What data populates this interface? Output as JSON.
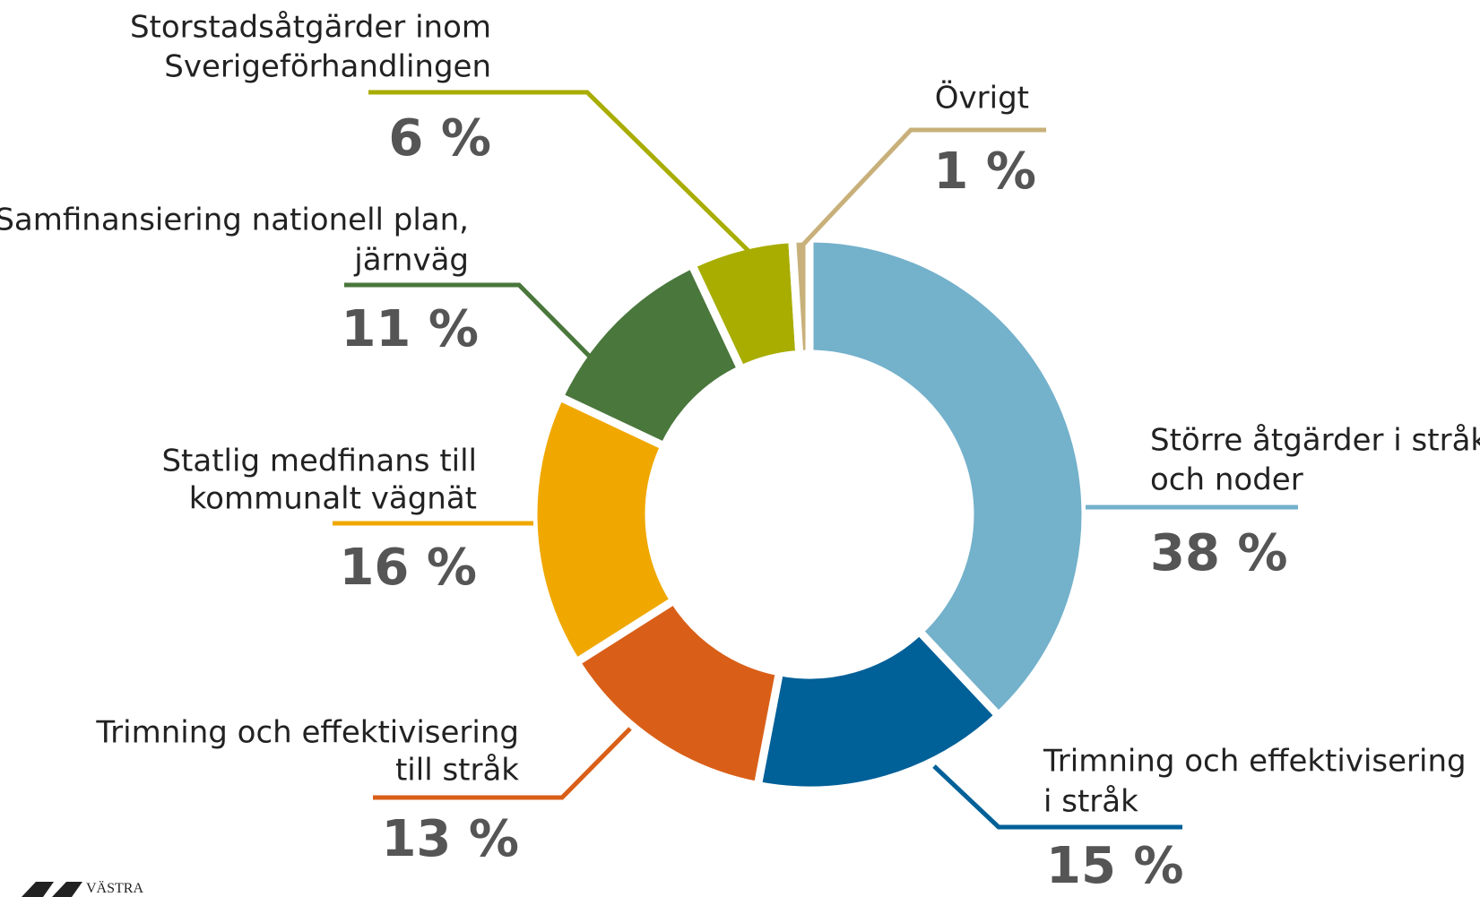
{
  "chart_data": {
    "type": "donut",
    "categories": [
      [
        "Större åtgärder i stråk",
        "och noder"
      ],
      [
        "Trimning och effektivisering",
        "i stråk"
      ],
      [
        "Trimning och effektivisering",
        "till stråk"
      ],
      [
        "Statlig medfinans till",
        "kommunalt vägnät"
      ],
      [
        "Samfinansiering nationell plan,",
        "järnväg"
      ],
      [
        "Storstadsåtgärder inom",
        "Sverigeförhandlingen"
      ],
      [
        "Övrigt"
      ]
    ],
    "values": [
      38,
      15,
      13,
      16,
      11,
      6,
      1
    ],
    "value_labels": [
      "38 %",
      "15 %",
      "13 %",
      "16 %",
      "11 %",
      "6 %",
      "1 %"
    ],
    "colors": [
      "#74b1cb",
      "#006098",
      "#d95f18",
      "#f0a800",
      "#4a773c",
      "#a8ad00",
      "#c8b07a"
    ],
    "logo": "VÄSTRA"
  }
}
